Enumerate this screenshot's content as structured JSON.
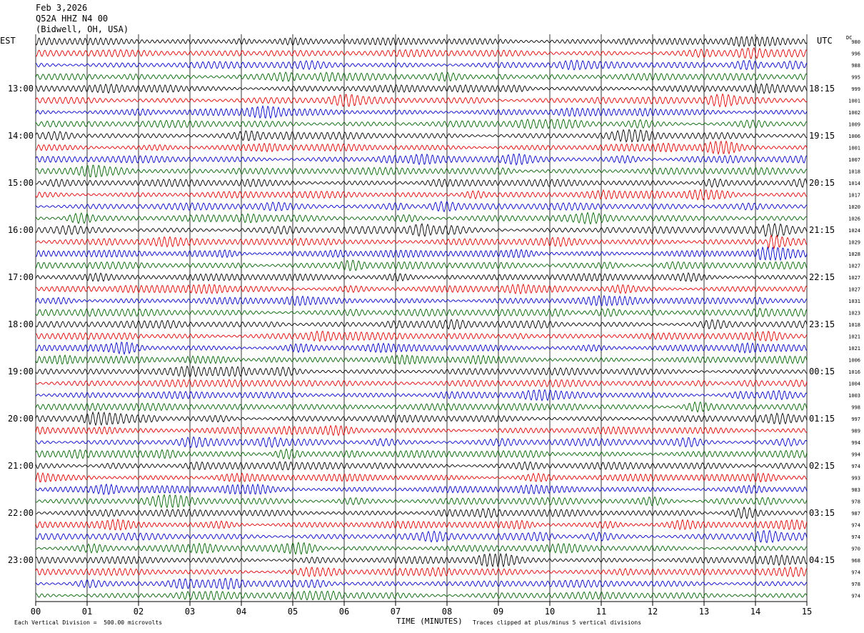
{
  "header": {
    "date": "Feb 3,2026",
    "station": "Q52A HHZ N4 00",
    "location": "(Bidwell, OH, USA)"
  },
  "labels": {
    "left_zone": "EST",
    "right_zone": "UTC",
    "dc": "DC",
    "xlabel": "TIME (MINUTES)",
    "scale_note": "Each Vertical Division =  500.00 microvolts",
    "clip_note": "Traces clipped at plus/minus 5 vertical divisions"
  },
  "colors": {
    "traces": [
      "#000000",
      "#e00000",
      "#0000c8",
      "#006400"
    ],
    "grid": "#000000"
  },
  "chart_data": {
    "type": "line",
    "title": "Q52A HHZ N4 00",
    "xlabel": "TIME (MINUTES)",
    "xlim": [
      0,
      15
    ],
    "x_ticks": [
      "00",
      "01",
      "02",
      "03",
      "04",
      "05",
      "06",
      "07",
      "08",
      "09",
      "10",
      "11",
      "12",
      "13",
      "14",
      "15"
    ],
    "left_hour_labels": [
      "13:00",
      "14:00",
      "15:00",
      "16:00",
      "17:00",
      "18:00",
      "19:00",
      "20:00",
      "21:00",
      "22:00",
      "23:00"
    ],
    "right_hour_labels": [
      "18:15",
      "19:15",
      "20:15",
      "21:15",
      "22:15",
      "23:15",
      "00:15",
      "01:15",
      "02:15",
      "03:15",
      "04:15"
    ],
    "rows_per_hour": 4,
    "trace_count": 48,
    "dc_offsets": [
      980,
      996,
      988,
      995,
      999,
      1001,
      1002,
      1009,
      1006,
      1001,
      1007,
      1018,
      1014,
      1017,
      1020,
      1026,
      1024,
      1029,
      1028,
      1027,
      1027,
      1027,
      1031,
      1023,
      1018,
      1021,
      1021,
      1006,
      1016,
      1004,
      1003,
      998,
      997,
      989,
      994,
      994,
      974,
      993,
      983,
      978,
      987,
      974,
      974,
      970,
      968,
      974,
      978,
      974
    ],
    "events": [
      {
        "trace": 16,
        "minute": 14.2,
        "amplitude": 3.2
      },
      {
        "trace": 17,
        "minute": 14.3,
        "amplitude": 2.2
      },
      {
        "trace": 18,
        "minute": 14.1,
        "amplitude": 1.6
      }
    ]
  }
}
